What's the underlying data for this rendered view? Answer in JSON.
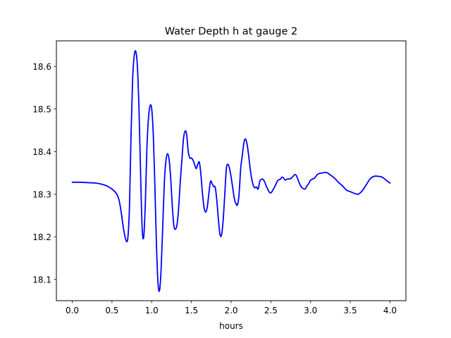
{
  "chart_data": {
    "type": "line",
    "title": "Water Depth h at gauge 2",
    "xlabel": "hours",
    "ylabel": "",
    "xlim": [
      -0.2,
      4.2
    ],
    "ylim": [
      18.05,
      18.66
    ],
    "xticks": [
      0.0,
      0.5,
      1.0,
      1.5,
      2.0,
      2.5,
      3.0,
      3.5,
      4.0
    ],
    "xtick_labels": [
      "0.0",
      "0.5",
      "1.0",
      "1.5",
      "2.0",
      "2.5",
      "3.0",
      "3.5",
      "4.0"
    ],
    "yticks": [
      18.1,
      18.2,
      18.3,
      18.4,
      18.5,
      18.6
    ],
    "ytick_labels": [
      "18.1",
      "18.2",
      "18.3",
      "18.4",
      "18.5",
      "18.6"
    ],
    "grid": false,
    "legend": "none",
    "series": [
      {
        "color": "#0000ff",
        "x": [
          0.0,
          0.1,
          0.2,
          0.3,
          0.4,
          0.45,
          0.5,
          0.55,
          0.58,
          0.6,
          0.62,
          0.64,
          0.66,
          0.68,
          0.7,
          0.72,
          0.74,
          0.76,
          0.78,
          0.8,
          0.82,
          0.84,
          0.86,
          0.88,
          0.9,
          0.92,
          0.94,
          0.96,
          0.98,
          1.0,
          1.02,
          1.04,
          1.06,
          1.08,
          1.1,
          1.12,
          1.14,
          1.16,
          1.18,
          1.2,
          1.22,
          1.24,
          1.26,
          1.28,
          1.3,
          1.32,
          1.34,
          1.36,
          1.38,
          1.4,
          1.42,
          1.44,
          1.46,
          1.48,
          1.5,
          1.52,
          1.54,
          1.56,
          1.58,
          1.6,
          1.62,
          1.64,
          1.66,
          1.68,
          1.7,
          1.72,
          1.74,
          1.76,
          1.78,
          1.8,
          1.82,
          1.84,
          1.86,
          1.88,
          1.9,
          1.92,
          1.94,
          1.96,
          1.98,
          2.0,
          2.02,
          2.04,
          2.06,
          2.08,
          2.1,
          2.12,
          2.14,
          2.16,
          2.18,
          2.2,
          2.22,
          2.24,
          2.26,
          2.28,
          2.3,
          2.32,
          2.34,
          2.36,
          2.38,
          2.4,
          2.42,
          2.44,
          2.46,
          2.48,
          2.5,
          2.52,
          2.55,
          2.58,
          2.6,
          2.62,
          2.64,
          2.66,
          2.68,
          2.7,
          2.72,
          2.74,
          2.76,
          2.78,
          2.8,
          2.82,
          2.84,
          2.86,
          2.88,
          2.9,
          2.93,
          2.95,
          2.98,
          3.0,
          3.05,
          3.08,
          3.1,
          3.15,
          3.2,
          3.25,
          3.3,
          3.35,
          3.4,
          3.45,
          3.5,
          3.55,
          3.6,
          3.65,
          3.7,
          3.75,
          3.8,
          3.85,
          3.9,
          3.95,
          4.0
        ],
        "y": [
          18.328,
          18.328,
          18.327,
          18.326,
          18.322,
          18.318,
          18.312,
          18.303,
          18.292,
          18.276,
          18.252,
          18.225,
          18.204,
          18.19,
          18.198,
          18.27,
          18.44,
          18.57,
          18.625,
          18.635,
          18.6,
          18.5,
          18.35,
          18.22,
          18.2,
          18.28,
          18.41,
          18.48,
          18.508,
          18.5,
          18.44,
          18.32,
          18.18,
          18.09,
          18.075,
          18.13,
          18.23,
          18.33,
          18.38,
          18.395,
          18.38,
          18.335,
          18.27,
          18.225,
          18.218,
          18.23,
          18.27,
          18.33,
          18.38,
          18.43,
          18.448,
          18.44,
          18.4,
          18.385,
          18.385,
          18.38,
          18.37,
          18.36,
          18.37,
          18.375,
          18.345,
          18.3,
          18.268,
          18.258,
          18.27,
          18.302,
          18.33,
          18.325,
          18.318,
          18.316,
          18.285,
          18.24,
          18.205,
          18.205,
          18.24,
          18.3,
          18.36,
          18.37,
          18.36,
          18.34,
          18.315,
          18.29,
          18.278,
          18.275,
          18.3,
          18.36,
          18.39,
          18.42,
          18.43,
          18.418,
          18.392,
          18.36,
          18.335,
          18.32,
          18.315,
          18.317,
          18.312,
          18.33,
          18.335,
          18.335,
          18.33,
          18.32,
          18.312,
          18.305,
          18.303,
          18.308,
          18.318,
          18.33,
          18.334,
          18.335,
          18.34,
          18.338,
          18.333,
          18.335,
          18.336,
          18.336,
          18.338,
          18.342,
          18.346,
          18.344,
          18.335,
          18.325,
          18.318,
          18.314,
          18.312,
          18.318,
          18.326,
          18.333,
          18.338,
          18.345,
          18.348,
          18.35,
          18.351,
          18.345,
          18.338,
          18.328,
          18.32,
          18.31,
          18.306,
          18.302,
          18.3,
          18.308,
          18.322,
          18.336,
          18.342,
          18.342,
          18.34,
          18.333,
          18.326
        ]
      }
    ]
  }
}
